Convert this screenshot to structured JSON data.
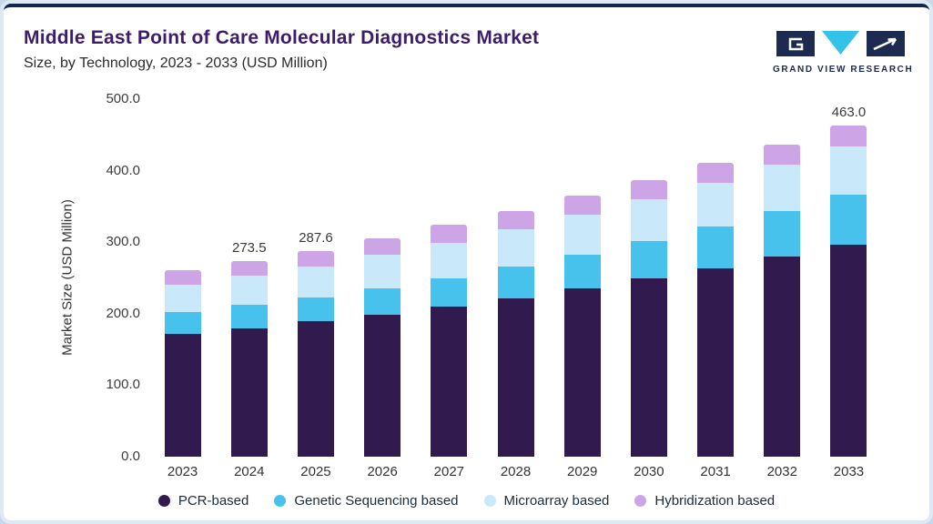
{
  "header": {
    "title": "Middle East Point of Care Molecular Diagnostics Market",
    "subtitle": "Size, by Technology, 2023 - 2033 (USD Million)",
    "logo_text": "GRAND VIEW RESEARCH"
  },
  "chart_data": {
    "type": "bar",
    "stacked": true,
    "title": "Middle East Point of Care Molecular Diagnostics Market Size, by Technology, 2023 - 2033 (USD Million)",
    "ylabel": "Market Size (USD Million)",
    "xlabel": "",
    "ylim": [
      0,
      500
    ],
    "ytick_values": [
      0,
      100,
      200,
      300,
      400,
      500
    ],
    "grid": false,
    "legend_position": "bottom",
    "categories": [
      "2023",
      "2024",
      "2025",
      "2026",
      "2027",
      "2028",
      "2029",
      "2030",
      "2031",
      "2032",
      "2033"
    ],
    "series": [
      {
        "name": "PCR-based",
        "color": "#301a4e",
        "values": [
          172,
          180,
          189,
          199,
          210,
          222,
          235,
          249,
          264,
          280,
          297
        ]
      },
      {
        "name": "Genetic Sequencing based",
        "color": "#47c2ec",
        "values": [
          30,
          32,
          34,
          37,
          40,
          44,
          48,
          53,
          58,
          64,
          70
        ]
      },
      {
        "name": "Microarray based",
        "color": "#c9e9fb",
        "values": [
          39,
          41,
          43,
          46,
          49,
          52,
          55,
          58,
          61,
          64,
          67
        ]
      },
      {
        "name": "Hybridization based",
        "color": "#cda5e6",
        "values": [
          20,
          20.5,
          21.6,
          23,
          25,
          26,
          27,
          27,
          28,
          28,
          29
        ]
      }
    ],
    "totals": [
      261,
      273.5,
      287.6,
      305,
      324,
      344,
      365,
      387,
      411,
      436,
      463
    ],
    "bar_labels": {
      "2024": "273.5",
      "2025": "287.6",
      "2033": "463.0"
    }
  },
  "colors": {
    "title": "#3d1d6b",
    "top_border": "#152747",
    "frame": "#dde9f4",
    "logo_navy": "#1d2b50",
    "logo_cyan": "#33c3e8"
  }
}
